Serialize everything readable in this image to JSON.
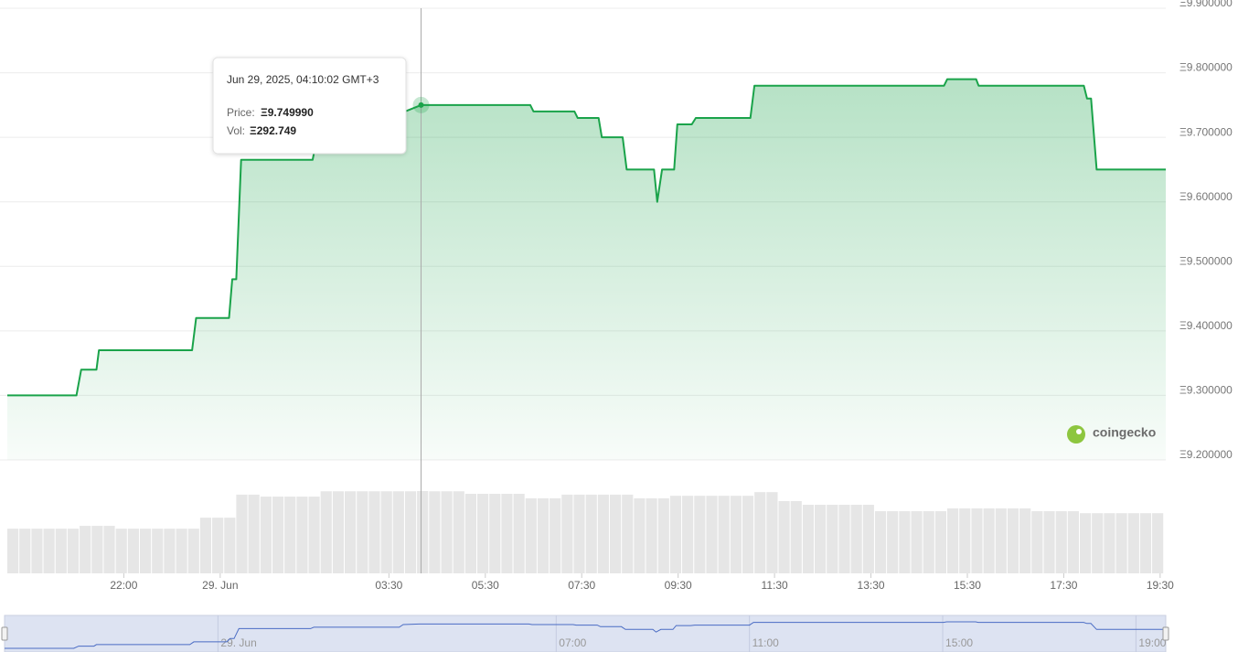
{
  "chart_data": [
    {
      "type": "line",
      "x": [
        "2025-06-28T19:35",
        "2025-06-28T21:01",
        "2025-06-28T21:07",
        "2025-06-28T21:26",
        "2025-06-28T21:29",
        "2025-06-28T23:25",
        "2025-06-28T23:30",
        "2025-06-29T00:11",
        "2025-06-29T00:15",
        "2025-06-29T00:20",
        "2025-06-29T00:26",
        "2025-06-29T01:55",
        "2025-06-29T01:59",
        "2025-06-29T03:45",
        "2025-06-29T03:50",
        "2025-06-29T04:10:02",
        "2025-06-29T06:26",
        "2025-06-29T06:30",
        "2025-06-29T07:21",
        "2025-06-29T07:25",
        "2025-06-29T07:51",
        "2025-06-29T07:55",
        "2025-06-29T08:21",
        "2025-06-29T08:26",
        "2025-06-29T09:00",
        "2025-06-29T09:04",
        "2025-06-29T09:10",
        "2025-06-29T09:25",
        "2025-06-29T09:29",
        "2025-06-29T09:47",
        "2025-06-29T09:52",
        "2025-06-29T11:00",
        "2025-06-29T11:05",
        "2025-06-29T15:01",
        "2025-06-29T15:05",
        "2025-06-29T15:41",
        "2025-06-29T15:44",
        "2025-06-29T17:55",
        "2025-06-29T17:59",
        "2025-06-29T18:04",
        "2025-06-29T18:11",
        "2025-06-29T19:37"
      ],
      "values": [
        9.3,
        9.3,
        9.34,
        9.34,
        9.37,
        9.37,
        9.42,
        9.42,
        9.48,
        9.48,
        9.665,
        9.665,
        9.69,
        9.69,
        9.74,
        9.74999,
        9.75,
        9.74,
        9.74,
        9.73,
        9.73,
        9.7,
        9.7,
        9.65,
        9.65,
        9.6,
        9.65,
        9.65,
        9.72,
        9.72,
        9.73,
        9.73,
        9.78,
        9.78,
        9.79,
        9.79,
        9.78,
        9.78,
        9.76,
        9.76,
        9.65,
        9.65
      ],
      "color": "#1aa34a",
      "xlim": [
        "2025-06-28T19:35",
        "2025-06-29T19:37"
      ],
      "xticks": [
        {
          "value": "2025-06-28T22:00",
          "label": "22:00"
        },
        {
          "value": "2025-06-29T00:00",
          "label": "29. Jun"
        },
        {
          "value": "2025-06-29T03:30",
          "label": "03:30"
        },
        {
          "value": "2025-06-29T05:30",
          "label": "05:30"
        },
        {
          "value": "2025-06-29T07:30",
          "label": "07:30"
        },
        {
          "value": "2025-06-29T09:30",
          "label": "09:30"
        },
        {
          "value": "2025-06-29T11:30",
          "label": "11:30"
        },
        {
          "value": "2025-06-29T13:30",
          "label": "13:30"
        },
        {
          "value": "2025-06-29T15:30",
          "label": "15:30"
        },
        {
          "value": "2025-06-29T17:30",
          "label": "17:30"
        },
        {
          "value": "2025-06-29T19:30",
          "label": "19:30"
        }
      ],
      "ylim": [
        9.2,
        9.9
      ],
      "yticks": [
        {
          "value": 9.2,
          "label": "Ξ9.200000"
        },
        {
          "value": 9.3,
          "label": "Ξ9.300000"
        },
        {
          "value": 9.4,
          "label": "Ξ9.400000"
        },
        {
          "value": 9.5,
          "label": "Ξ9.500000"
        },
        {
          "value": 9.6,
          "label": "Ξ9.600000"
        },
        {
          "value": 9.7,
          "label": "Ξ9.700000"
        },
        {
          "value": 9.8,
          "label": "Ξ9.800000"
        },
        {
          "value": 9.9,
          "label": "Ξ9.900000"
        }
      ],
      "grid": true,
      "navigator_xticks": [
        {
          "value": "2025-06-29T00:00",
          "label": "29. Jun"
        },
        {
          "value": "2025-06-29T07:00",
          "label": "07:00"
        },
        {
          "value": "2025-06-29T11:00",
          "label": "11:00"
        },
        {
          "value": "2025-06-29T15:00",
          "label": "15:00"
        },
        {
          "value": "2025-06-29T19:00",
          "label": "19:00"
        }
      ],
      "navigator_color": "#4a6cc4",
      "tooltip": {
        "x": "2025-06-29T04:10:02",
        "title": "Jun 29, 2025, 04:10:02 GMT+3",
        "price_label": "Price:",
        "price": "Ξ9.749990",
        "vol_label": "Vol:",
        "vol": "Ξ292.749"
      },
      "watermark": "coingecko"
    },
    {
      "type": "bar",
      "x": [
        "2025-06-28T19:35",
        "2025-06-28T19:50",
        "2025-06-28T20:05",
        "2025-06-28T20:20",
        "2025-06-28T20:35",
        "2025-06-28T20:50",
        "2025-06-28T21:05",
        "2025-06-28T21:20",
        "2025-06-28T21:35",
        "2025-06-28T21:50",
        "2025-06-28T22:05",
        "2025-06-28T22:20",
        "2025-06-28T22:35",
        "2025-06-28T22:50",
        "2025-06-28T23:05",
        "2025-06-28T23:20",
        "2025-06-28T23:35",
        "2025-06-28T23:50",
        "2025-06-29T00:05",
        "2025-06-29T00:20",
        "2025-06-29T00:35",
        "2025-06-29T00:50",
        "2025-06-29T01:05",
        "2025-06-29T01:20",
        "2025-06-29T01:35",
        "2025-06-29T01:50",
        "2025-06-29T02:05",
        "2025-06-29T02:20",
        "2025-06-29T02:35",
        "2025-06-29T02:50",
        "2025-06-29T03:05",
        "2025-06-29T03:20",
        "2025-06-29T03:35",
        "2025-06-29T03:50",
        "2025-06-29T04:05",
        "2025-06-29T04:20",
        "2025-06-29T04:35",
        "2025-06-29T04:50",
        "2025-06-29T05:05",
        "2025-06-29T05:20",
        "2025-06-29T05:35",
        "2025-06-29T05:50",
        "2025-06-29T06:05",
        "2025-06-29T06:20",
        "2025-06-29T06:35",
        "2025-06-29T06:50",
        "2025-06-29T07:05",
        "2025-06-29T07:20",
        "2025-06-29T07:35",
        "2025-06-29T07:50",
        "2025-06-29T08:05",
        "2025-06-29T08:20",
        "2025-06-29T08:35",
        "2025-06-29T08:50",
        "2025-06-29T09:05",
        "2025-06-29T09:20",
        "2025-06-29T09:35",
        "2025-06-29T09:50",
        "2025-06-29T10:05",
        "2025-06-29T10:20",
        "2025-06-29T10:35",
        "2025-06-29T10:50",
        "2025-06-29T11:05",
        "2025-06-29T11:20",
        "2025-06-29T11:35",
        "2025-06-29T11:50",
        "2025-06-29T12:05",
        "2025-06-29T12:20",
        "2025-06-29T12:35",
        "2025-06-29T12:50",
        "2025-06-29T13:05",
        "2025-06-29T13:20",
        "2025-06-29T13:35",
        "2025-06-29T13:50",
        "2025-06-29T14:05",
        "2025-06-29T14:20",
        "2025-06-29T14:35",
        "2025-06-29T14:50",
        "2025-06-29T15:05",
        "2025-06-29T15:20",
        "2025-06-29T15:35",
        "2025-06-29T15:50",
        "2025-06-29T16:05",
        "2025-06-29T16:20",
        "2025-06-29T16:35",
        "2025-06-29T16:50",
        "2025-06-29T17:05",
        "2025-06-29T17:20",
        "2025-06-29T17:35",
        "2025-06-29T17:50",
        "2025-06-29T18:05",
        "2025-06-29T18:20",
        "2025-06-29T18:35",
        "2025-06-29T18:50",
        "2025-06-29T19:05",
        "2025-06-29T19:20"
      ],
      "values": [
        159,
        159,
        159,
        159,
        159,
        159,
        169,
        169,
        169,
        159,
        159,
        159,
        159,
        159,
        159,
        159,
        198,
        198,
        198,
        280,
        280,
        273,
        273,
        273,
        273,
        273,
        292,
        292,
        292,
        292,
        292,
        292,
        292,
        292,
        292.749,
        292,
        292,
        292,
        283,
        283,
        283,
        283,
        283,
        267,
        267,
        267,
        280,
        280,
        280,
        280,
        280,
        280,
        267,
        267,
        267,
        276,
        276,
        276,
        276,
        276,
        276,
        276,
        289,
        289,
        257,
        257,
        244,
        244,
        244,
        244,
        244,
        244,
        221,
        221,
        221,
        221,
        221,
        221,
        231,
        231,
        231,
        231,
        231,
        231,
        231,
        221,
        221,
        221,
        221,
        214,
        214,
        214,
        214,
        214,
        214,
        214
      ],
      "color": "#e6e6e6"
    }
  ]
}
